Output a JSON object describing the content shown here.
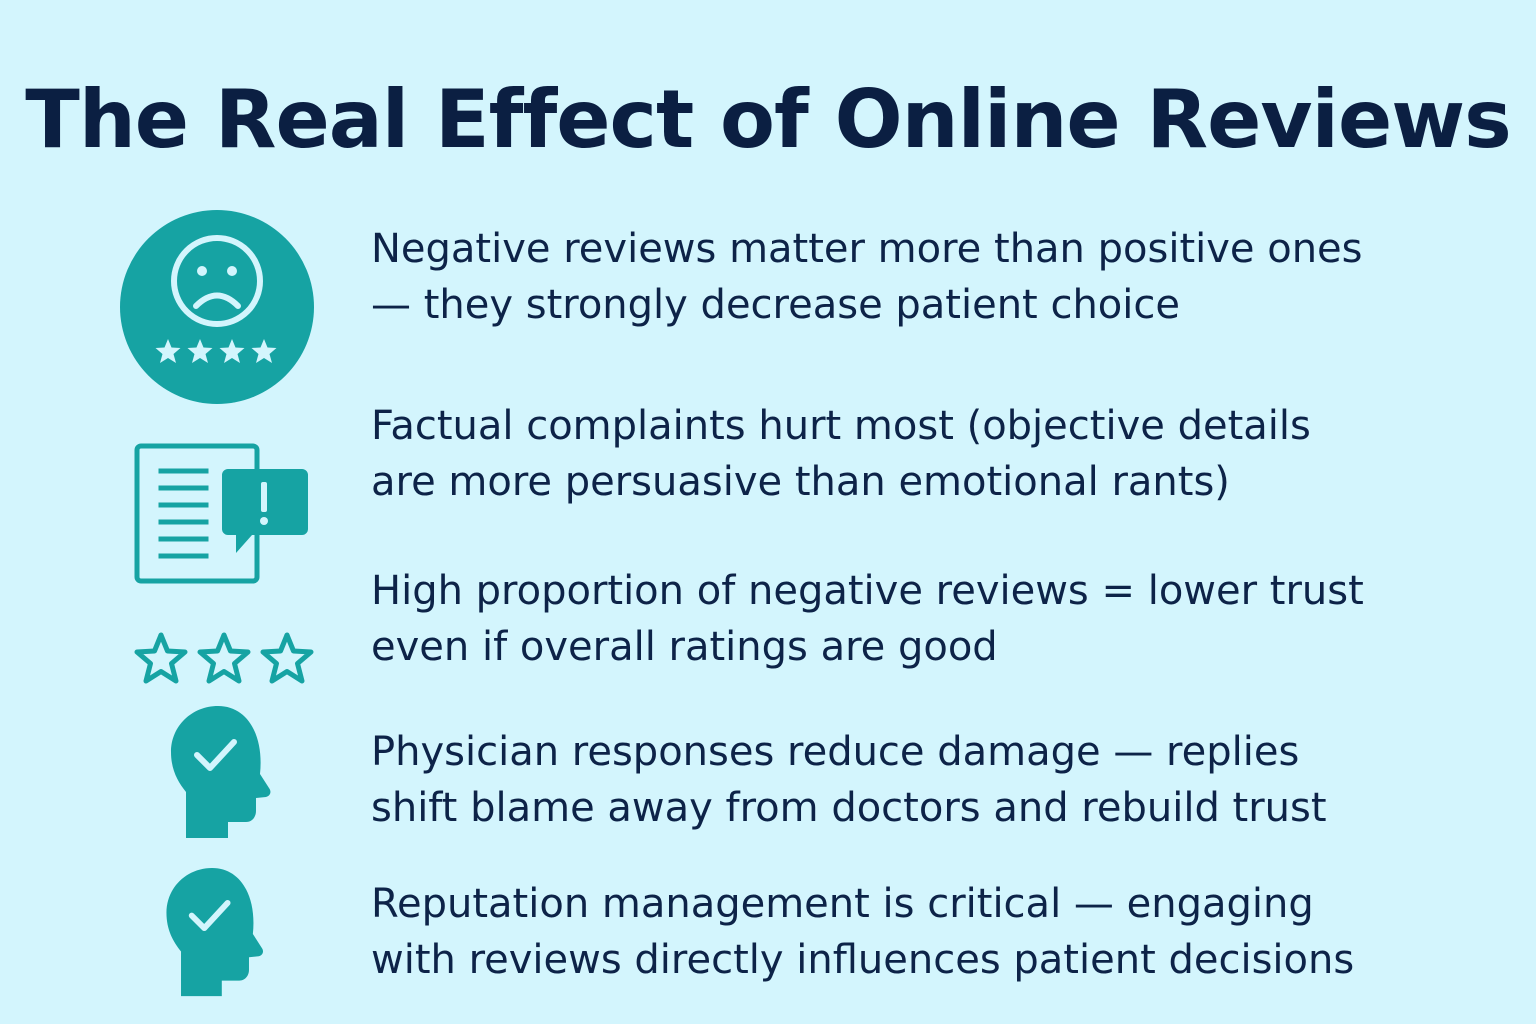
{
  "title": "The Real Effect of Online Reviews",
  "accent_color": "#16a3a3",
  "items": [
    {
      "icon": "sad-face-stars-icon",
      "line1": "Negative reviews matter more than positive ones",
      "line2": "— they strongly decrease patient choice"
    },
    {
      "icon": "document-alert-icon",
      "line1": "Factual complaints hurt most (objective details",
      "line2": "are more persuasive than emotional rants)"
    },
    {
      "icon": "three-stars-icon",
      "line1": "High proportion of negative reviews = lower trust",
      "line2": "even if overall ratings are good"
    },
    {
      "icon": "head-check-icon",
      "line1": "Physician responses reduce damage — replies",
      "line2": "shift blame away from doctors and rebuild trust"
    },
    {
      "icon": "head-check-icon",
      "line1": "Reputation management is critical — engaging",
      "line2": "with reviews directly influences patient decisions"
    }
  ]
}
